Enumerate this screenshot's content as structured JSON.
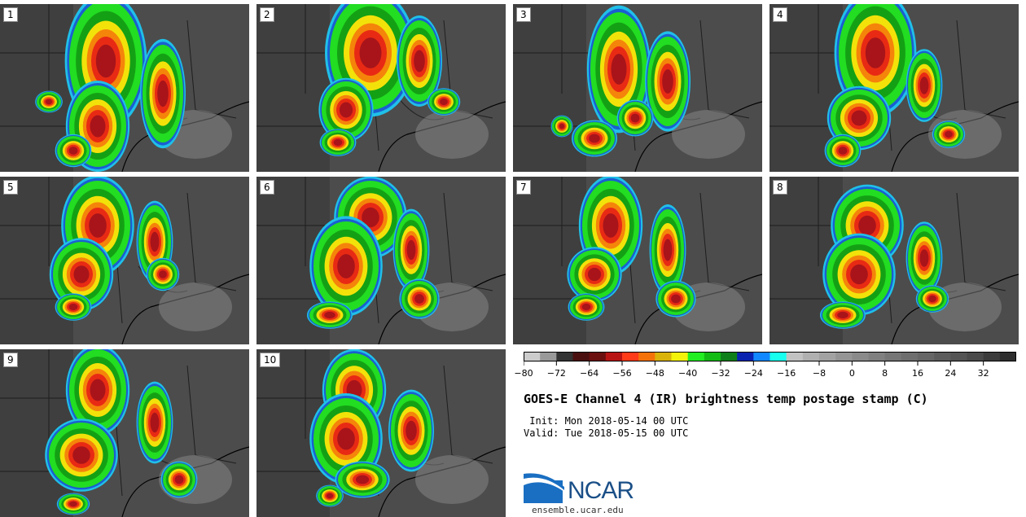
{
  "panels": [
    {
      "label": "1"
    },
    {
      "label": "2"
    },
    {
      "label": "3"
    },
    {
      "label": "4"
    },
    {
      "label": "5"
    },
    {
      "label": "6"
    },
    {
      "label": "7"
    },
    {
      "label": "8"
    },
    {
      "label": "9"
    },
    {
      "label": "10"
    }
  ],
  "colorbar": {
    "ticks": [
      "-80",
      "-72",
      "-64",
      "-56",
      "-48",
      "-40",
      "-32",
      "-24",
      "-16",
      "-8",
      "0",
      "8",
      "16",
      "24",
      "32"
    ],
    "min": -80,
    "max": 40,
    "colors": [
      "#cccccc",
      "#999999",
      "#333333",
      "#4a1010",
      "#6b0f0f",
      "#b81414",
      "#ff3b1a",
      "#f5720a",
      "#d9b30a",
      "#f2f20a",
      "#22ee22",
      "#14bb14",
      "#0f7f1a",
      "#0a22b0",
      "#1188ff",
      "#19ffee",
      "#c2c2c2",
      "#b0b0b0",
      "#a2a2a2",
      "#959595",
      "#8a8a8a",
      "#808080",
      "#767676",
      "#6e6e6e",
      "#666666",
      "#5c5c5c",
      "#545454",
      "#4a4a4a",
      "#3c3c3c",
      "#2e2e2e"
    ]
  },
  "title": "GOES-E Channel 4 (IR) brightness temp postage stamp (C)",
  "init_line": " Init: Mon 2018-05-14 00 UTC",
  "valid_line": "Valid: Tue 2018-05-15 00 UTC",
  "logo_text": "NCAR",
  "url": "ensemble.ucar.edu"
}
